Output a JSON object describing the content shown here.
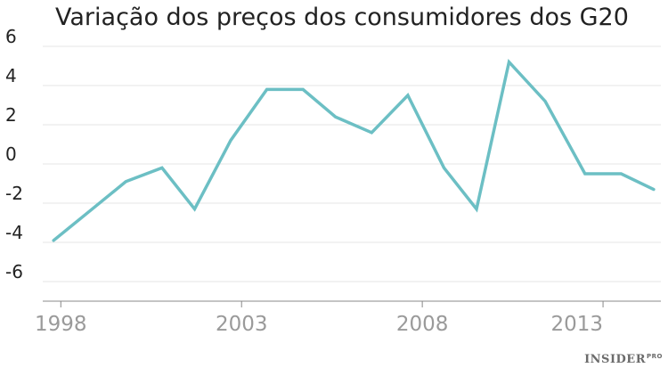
{
  "brand": {
    "name": "INSIDER",
    "suffix": "PRO"
  },
  "colors": {
    "line": "#6cbfc4",
    "grid": "#e6e6e6",
    "axis": "#888888",
    "x_tick_text": "#9a9a9a"
  },
  "chart_data": {
    "type": "line",
    "title": "Variação dos preços dos consumidores dos G20",
    "xlabel": "",
    "ylabel": "",
    "x_ticks": [
      "1998",
      "2003",
      "2008",
      "2013"
    ],
    "y_ticks": [
      "6",
      "4",
      "2",
      "0",
      "-2",
      "-4",
      "-6"
    ],
    "xlim": [
      1997.5,
      2014.6
    ],
    "ylim": [
      -7,
      6
    ],
    "grid": true,
    "legend": "none",
    "series": [
      {
        "x": [
          1997.8,
          1998.8,
          1999.8,
          2000.8,
          2001.7,
          2002.7,
          2003.7,
          2004.7,
          2005.6,
          2006.6,
          2007.6,
          2008.6,
          2009.5,
          2010.4,
          2011.4,
          2012.5,
          2013.5,
          2014.4
        ],
        "values": [
          -3.9,
          -2.4,
          -0.9,
          -0.2,
          -2.3,
          1.2,
          3.8,
          3.8,
          2.4,
          1.6,
          3.5,
          -0.2,
          -2.3,
          5.2,
          3.2,
          -0.5,
          -0.5,
          -1.3
        ]
      }
    ]
  }
}
